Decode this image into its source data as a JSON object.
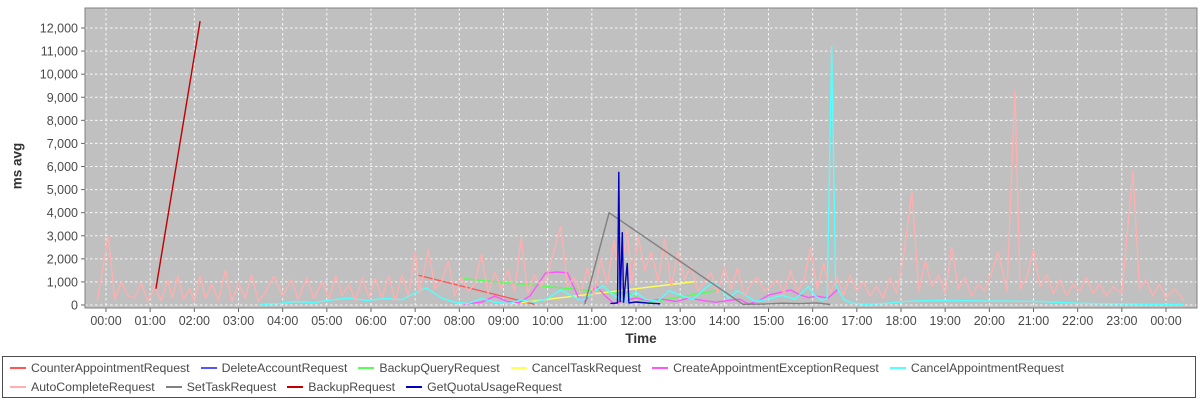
{
  "chart_data": {
    "type": "line",
    "title": "",
    "xlabel": "Time",
    "ylabel": "ms avg",
    "x_unit": "hour_of_day",
    "xlim": [
      -0.48,
      24.7
    ],
    "ylim": [
      0,
      12870
    ],
    "y_tick_step": 1000,
    "grid": true,
    "legend_position": "bottom",
    "plot_background": "#C0C0C0",
    "grid_color": "#FFFFFF",
    "y_ticks": [
      "0",
      "1,000",
      "2,000",
      "3,000",
      "4,000",
      "5,000",
      "6,000",
      "7,000",
      "8,000",
      "9,000",
      "10,000",
      "11,000",
      "12,000"
    ],
    "x_ticks": [
      "00:00",
      "01:00",
      "02:00",
      "03:00",
      "04:00",
      "05:00",
      "06:00",
      "07:00",
      "08:00",
      "09:00",
      "10:00",
      "11:00",
      "12:00",
      "13:00",
      "14:00",
      "15:00",
      "16:00",
      "17:00",
      "18:00",
      "19:00",
      "20:00",
      "21:00",
      "22:00",
      "23:00",
      "00:00"
    ],
    "series": [
      {
        "name": "CounterAppointmentRequest",
        "color": "#FF5555",
        "points": [
          [
            7.05,
            1300
          ],
          [
            9.7,
            30
          ]
        ]
      },
      {
        "name": "DeleteAccountRequest",
        "color": "#5555FF",
        "points": []
      },
      {
        "name": "BackupQueryRequest",
        "color": "#55FF55",
        "points": [
          [
            8.05,
            1150
          ],
          [
            11.9,
            460
          ],
          [
            12.25,
            90
          ],
          [
            13.9,
            650
          ]
        ]
      },
      {
        "name": "CancelTaskRequest",
        "color": "#FFFF55",
        "points": [
          [
            9.2,
            60
          ],
          [
            13.35,
            1020
          ]
        ]
      },
      {
        "name": "CreateAppointmentExceptionRequest",
        "color": "#FF55FF",
        "points": [
          [
            8.1,
            40
          ],
          [
            8.5,
            120
          ],
          [
            8.8,
            380
          ],
          [
            9.1,
            150
          ],
          [
            9.35,
            90
          ],
          [
            9.6,
            400
          ],
          [
            9.95,
            1380
          ],
          [
            10.2,
            1430
          ],
          [
            10.45,
            1400
          ],
          [
            10.7,
            300
          ],
          [
            10.85,
            160
          ],
          [
            11.1,
            820
          ],
          [
            11.3,
            400
          ],
          [
            11.5,
            60
          ],
          [
            11.75,
            200
          ],
          [
            12.0,
            300
          ],
          [
            12.3,
            180
          ],
          [
            12.6,
            250
          ],
          [
            12.9,
            150
          ],
          [
            13.2,
            300
          ],
          [
            13.5,
            200
          ],
          [
            13.8,
            120
          ],
          [
            14.1,
            200
          ],
          [
            14.35,
            250
          ],
          [
            14.55,
            40
          ],
          [
            14.8,
            200
          ],
          [
            15.0,
            430
          ],
          [
            15.3,
            560
          ],
          [
            15.5,
            650
          ],
          [
            15.7,
            450
          ],
          [
            15.9,
            320
          ],
          [
            16.1,
            380
          ],
          [
            16.35,
            300
          ],
          [
            16.57,
            680
          ]
        ]
      },
      {
        "name": "CancelAppointmentRequest",
        "color": "#55FFFF",
        "points": [
          [
            3.5,
            20
          ],
          [
            3.9,
            60
          ],
          [
            4.3,
            150
          ],
          [
            4.7,
            100
          ],
          [
            5.1,
            220
          ],
          [
            5.5,
            300
          ],
          [
            5.9,
            200
          ],
          [
            6.3,
            280
          ],
          [
            6.7,
            230
          ],
          [
            7.0,
            520
          ],
          [
            7.25,
            740
          ],
          [
            7.6,
            300
          ],
          [
            7.9,
            120
          ],
          [
            8.2,
            60
          ],
          [
            8.5,
            280
          ],
          [
            8.8,
            120
          ],
          [
            9.1,
            60
          ],
          [
            9.4,
            220
          ],
          [
            9.7,
            120
          ],
          [
            10.0,
            280
          ],
          [
            10.3,
            650
          ],
          [
            10.55,
            380
          ],
          [
            10.8,
            200
          ],
          [
            11.05,
            560
          ],
          [
            11.25,
            840
          ],
          [
            11.5,
            400
          ],
          [
            11.75,
            180
          ],
          [
            12.0,
            560
          ],
          [
            12.2,
            250
          ],
          [
            12.5,
            160
          ],
          [
            12.75,
            620
          ],
          [
            13.0,
            420
          ],
          [
            13.3,
            250
          ],
          [
            13.55,
            700
          ],
          [
            13.75,
            1000
          ],
          [
            13.95,
            620
          ],
          [
            14.1,
            300
          ],
          [
            14.3,
            620
          ],
          [
            14.5,
            400
          ],
          [
            14.7,
            150
          ],
          [
            15.0,
            250
          ],
          [
            15.3,
            420
          ],
          [
            15.6,
            250
          ],
          [
            15.9,
            800
          ],
          [
            16.05,
            400
          ],
          [
            16.2,
            200
          ],
          [
            16.33,
            300
          ],
          [
            16.43,
            11200
          ],
          [
            16.52,
            870
          ],
          [
            16.7,
            250
          ],
          [
            16.9,
            80
          ],
          [
            17.2,
            30
          ],
          [
            17.6,
            60
          ],
          [
            18.0,
            140
          ],
          [
            18.4,
            180
          ],
          [
            18.8,
            200
          ],
          [
            19.2,
            190
          ],
          [
            19.6,
            180
          ],
          [
            20.0,
            170
          ],
          [
            20.4,
            170
          ],
          [
            20.8,
            160
          ],
          [
            21.2,
            150
          ],
          [
            21.6,
            110
          ],
          [
            22.0,
            80
          ],
          [
            22.4,
            60
          ],
          [
            22.8,
            50
          ],
          [
            23.2,
            40
          ],
          [
            23.6,
            30
          ],
          [
            24.0,
            25
          ],
          [
            24.4,
            20
          ]
        ]
      },
      {
        "name": "AutoCompleteRequest",
        "color": "#FFAFAF",
        "points": [
          [
            -0.2,
            150
          ],
          [
            0.05,
            3000
          ],
          [
            0.2,
            250
          ],
          [
            0.35,
            1000
          ],
          [
            0.5,
            400
          ],
          [
            0.65,
            300
          ],
          [
            0.8,
            950
          ],
          [
            0.95,
            150
          ],
          [
            1.1,
            800
          ],
          [
            1.25,
            200
          ],
          [
            1.4,
            1100
          ],
          [
            1.5,
            300
          ],
          [
            1.63,
            1250
          ],
          [
            1.75,
            250
          ],
          [
            1.9,
            700
          ],
          [
            2.0,
            150
          ],
          [
            2.13,
            1250
          ],
          [
            2.25,
            300
          ],
          [
            2.4,
            900
          ],
          [
            2.55,
            200
          ],
          [
            2.7,
            1500
          ],
          [
            2.85,
            150
          ],
          [
            3.0,
            950
          ],
          [
            3.15,
            300
          ],
          [
            3.3,
            1300
          ],
          [
            3.45,
            150
          ],
          [
            3.6,
            500
          ],
          [
            3.8,
            1250
          ],
          [
            4.0,
            400
          ],
          [
            4.2,
            1100
          ],
          [
            4.35,
            250
          ],
          [
            4.55,
            1200
          ],
          [
            4.7,
            300
          ],
          [
            4.9,
            1000
          ],
          [
            5.05,
            250
          ],
          [
            5.2,
            1250
          ],
          [
            5.35,
            400
          ],
          [
            5.5,
            900
          ],
          [
            5.65,
            200
          ],
          [
            5.8,
            1200
          ],
          [
            5.95,
            350
          ],
          [
            6.1,
            1150
          ],
          [
            6.25,
            300
          ],
          [
            6.4,
            1250
          ],
          [
            6.55,
            200
          ],
          [
            6.7,
            1300
          ],
          [
            6.85,
            400
          ],
          [
            7.0,
            2300
          ],
          [
            7.1,
            500
          ],
          [
            7.3,
            2400
          ],
          [
            7.45,
            700
          ],
          [
            7.6,
            1000
          ],
          [
            7.75,
            1900
          ],
          [
            7.9,
            400
          ],
          [
            8.05,
            1200
          ],
          [
            8.2,
            600
          ],
          [
            8.35,
            900
          ],
          [
            8.5,
            2200
          ],
          [
            8.65,
            500
          ],
          [
            8.8,
            1400
          ],
          [
            8.95,
            700
          ],
          [
            9.1,
            1500
          ],
          [
            9.25,
            600
          ],
          [
            9.4,
            2900
          ],
          [
            9.55,
            500
          ],
          [
            9.7,
            1300
          ],
          [
            9.85,
            800
          ],
          [
            10.0,
            1300
          ],
          [
            10.15,
            2400
          ],
          [
            10.3,
            3400
          ],
          [
            10.45,
            800
          ],
          [
            10.6,
            1200
          ],
          [
            10.75,
            500
          ],
          [
            10.9,
            1600
          ],
          [
            11.05,
            400
          ],
          [
            11.2,
            2000
          ],
          [
            11.35,
            900
          ],
          [
            11.5,
            2800
          ],
          [
            11.65,
            1200
          ],
          [
            11.8,
            3300
          ],
          [
            11.9,
            900
          ],
          [
            12.05,
            2950
          ],
          [
            12.2,
            1500
          ],
          [
            12.35,
            2300
          ],
          [
            12.5,
            1000
          ],
          [
            12.65,
            2850
          ],
          [
            12.8,
            800
          ],
          [
            12.95,
            2300
          ],
          [
            13.1,
            1100
          ],
          [
            13.25,
            1700
          ],
          [
            13.4,
            600
          ],
          [
            13.55,
            1000
          ],
          [
            13.7,
            1400
          ],
          [
            13.85,
            500
          ],
          [
            14.0,
            1650
          ],
          [
            14.15,
            700
          ],
          [
            14.3,
            1600
          ],
          [
            14.45,
            400
          ],
          [
            14.6,
            900
          ],
          [
            14.75,
            1200
          ],
          [
            14.9,
            600
          ],
          [
            15.05,
            800
          ],
          [
            15.2,
            1100
          ],
          [
            15.35,
            500
          ],
          [
            15.5,
            1500
          ],
          [
            15.65,
            600
          ],
          [
            15.8,
            1000
          ],
          [
            15.95,
            2500
          ],
          [
            16.1,
            700
          ],
          [
            16.25,
            1800
          ],
          [
            16.4,
            500
          ],
          [
            16.55,
            1200
          ],
          [
            16.7,
            400
          ],
          [
            16.85,
            1300
          ],
          [
            17.0,
            600
          ],
          [
            17.15,
            1000
          ],
          [
            17.3,
            400
          ],
          [
            17.45,
            800
          ],
          [
            17.6,
            300
          ],
          [
            17.75,
            1200
          ],
          [
            17.9,
            500
          ],
          [
            18.05,
            2000
          ],
          [
            18.25,
            4900
          ],
          [
            18.4,
            600
          ],
          [
            18.55,
            1900
          ],
          [
            18.7,
            800
          ],
          [
            18.85,
            1300
          ],
          [
            19.0,
            500
          ],
          [
            19.15,
            2500
          ],
          [
            19.3,
            700
          ],
          [
            19.45,
            1200
          ],
          [
            19.6,
            400
          ],
          [
            19.75,
            900
          ],
          [
            19.9,
            600
          ],
          [
            20.05,
            1400
          ],
          [
            20.2,
            2300
          ],
          [
            20.4,
            600
          ],
          [
            20.58,
            9300
          ],
          [
            20.7,
            700
          ],
          [
            20.85,
            1200
          ],
          [
            21.0,
            2400
          ],
          [
            21.15,
            800
          ],
          [
            21.3,
            1300
          ],
          [
            21.45,
            500
          ],
          [
            21.6,
            1100
          ],
          [
            21.75,
            400
          ],
          [
            21.9,
            900
          ],
          [
            22.05,
            600
          ],
          [
            22.2,
            1200
          ],
          [
            22.35,
            500
          ],
          [
            22.5,
            900
          ],
          [
            22.65,
            400
          ],
          [
            22.8,
            800
          ],
          [
            23.0,
            500
          ],
          [
            23.25,
            5800
          ],
          [
            23.4,
            700
          ],
          [
            23.55,
            1100
          ],
          [
            23.7,
            400
          ],
          [
            23.85,
            900
          ],
          [
            24.0,
            300
          ],
          [
            24.2,
            700
          ],
          [
            24.4,
            200
          ]
        ]
      },
      {
        "name": "SetTaskRequest",
        "color": "#808080",
        "points": [
          [
            10.84,
            30
          ],
          [
            11.39,
            4000
          ],
          [
            14.42,
            30
          ],
          [
            14.9,
            40
          ],
          [
            15.3,
            80
          ],
          [
            15.7,
            60
          ],
          [
            16.1,
            90
          ],
          [
            16.4,
            20
          ]
        ]
      },
      {
        "name": "BackupRequest",
        "color": "#C00000",
        "points": [
          [
            1.13,
            700
          ],
          [
            2.13,
            12300
          ]
        ]
      },
      {
        "name": "GetQuotaUsageRequest",
        "color": "#0000C0",
        "points": [
          [
            11.42,
            60
          ],
          [
            11.58,
            90
          ],
          [
            11.61,
            5750
          ],
          [
            11.64,
            150
          ],
          [
            11.69,
            3130
          ],
          [
            11.72,
            120
          ],
          [
            11.8,
            1800
          ],
          [
            11.84,
            90
          ],
          [
            12.0,
            130
          ],
          [
            12.3,
            80
          ],
          [
            12.55,
            50
          ]
        ]
      }
    ]
  },
  "legend": {
    "rows": [
      [
        0,
        1,
        2,
        3,
        4,
        5
      ],
      [
        6,
        7,
        8,
        9
      ]
    ]
  }
}
